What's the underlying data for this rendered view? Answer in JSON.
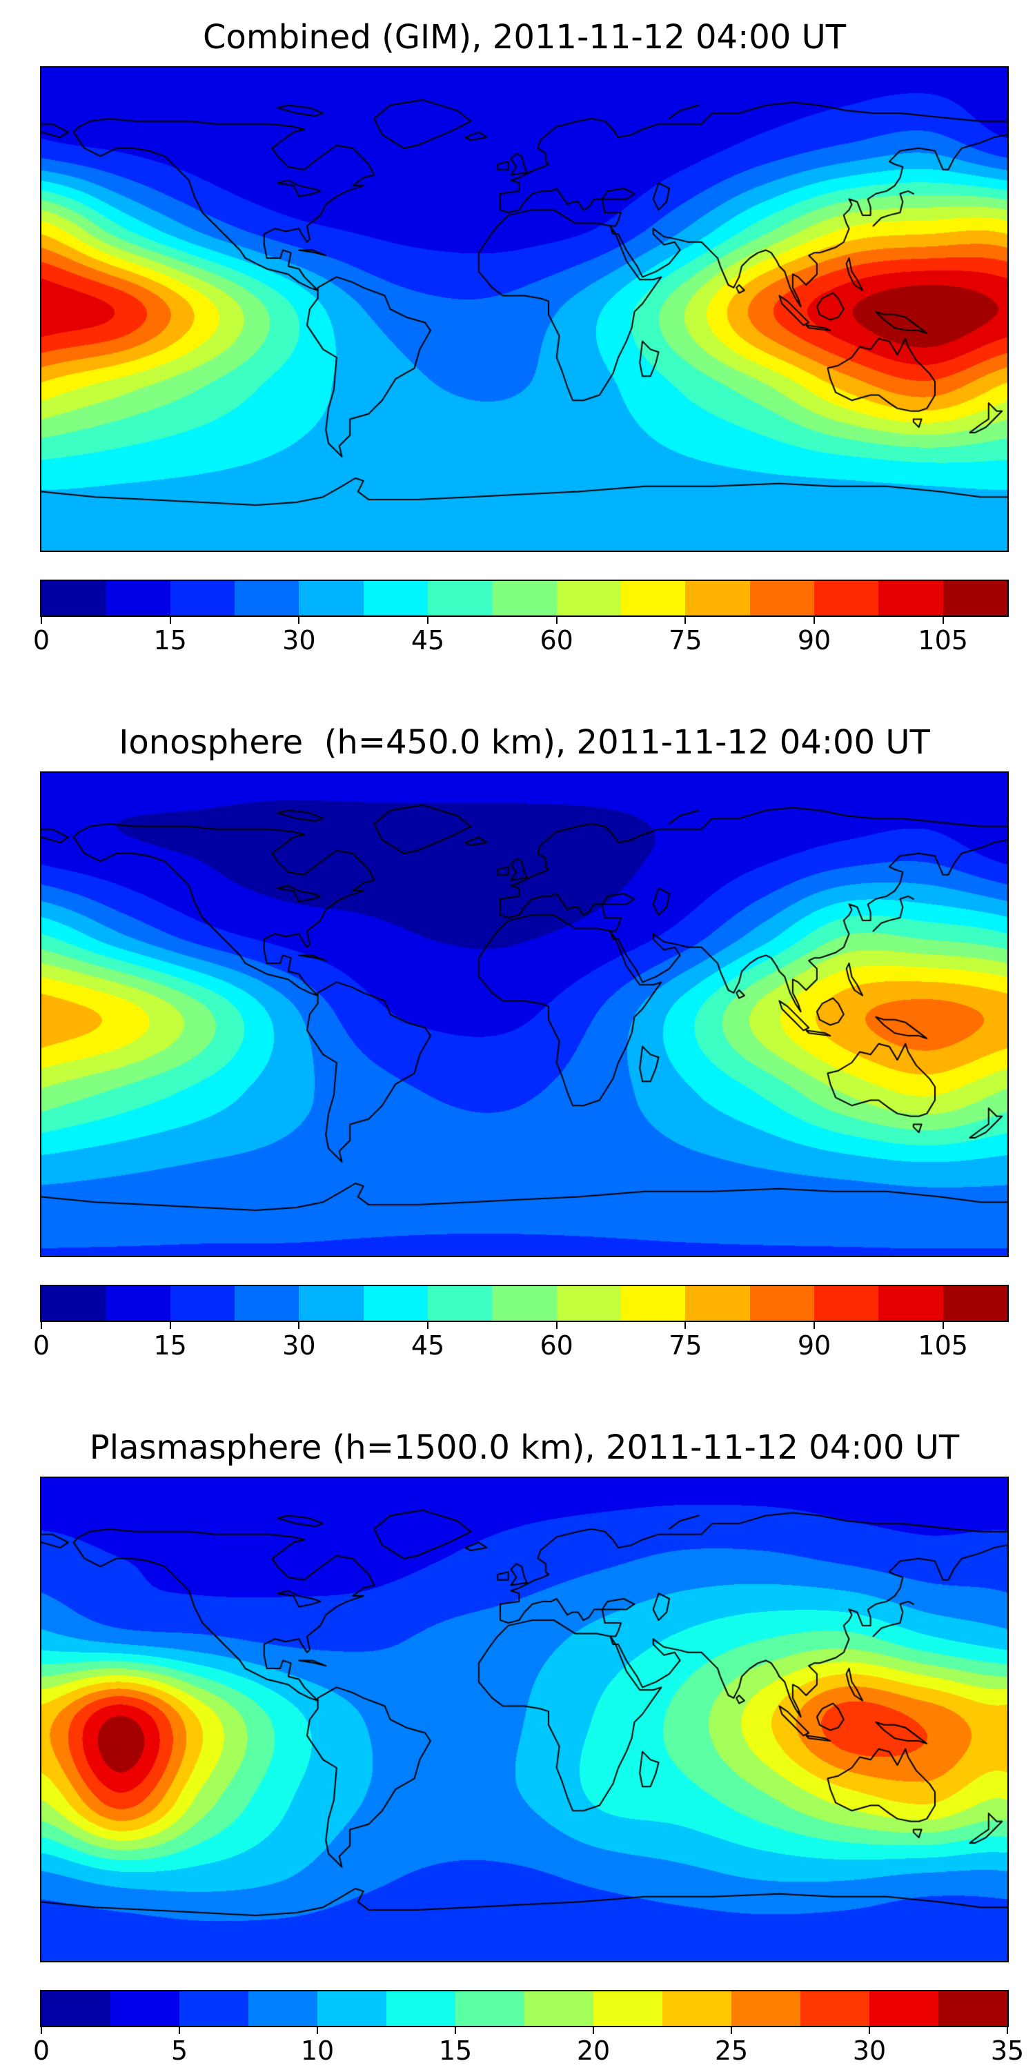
{
  "figure": {
    "background": "#ffffff"
  },
  "chart_data": [
    {
      "type": "heatmap",
      "title": "Combined (GIM), 2011-11-12 04:00 UT",
      "projection": "equirectangular",
      "lon_range": [
        -180,
        180
      ],
      "lat_range": [
        -90,
        90
      ],
      "colormap": "jet",
      "vmin": 0,
      "vmax": 112.5,
      "n_levels": 15,
      "colorbar_ticks": [
        0,
        15,
        30,
        45,
        60,
        75,
        90,
        105
      ],
      "grid_lon": [
        -180,
        -150,
        -120,
        -90,
        -60,
        -30,
        0,
        30,
        60,
        90,
        120,
        150,
        180
      ],
      "grid_lat": [
        90,
        60,
        30,
        0,
        -30,
        -60,
        -90
      ],
      "values": [
        [
          12,
          12,
          12,
          12,
          12,
          12,
          12,
          12,
          12,
          12,
          12,
          12,
          12
        ],
        [
          18,
          14,
          11,
          9,
          8,
          8,
          8,
          9,
          12,
          18,
          24,
          28,
          18
        ],
        [
          72,
          46,
          28,
          18,
          14,
          12,
          12,
          16,
          30,
          50,
          68,
          72,
          72
        ],
        [
          104,
          96,
          72,
          48,
          30,
          24,
          26,
          38,
          60,
          88,
          104,
          112,
          104
        ],
        [
          72,
          62,
          52,
          42,
          35,
          30,
          30,
          36,
          46,
          58,
          76,
          86,
          72
        ],
        [
          42,
          40,
          38,
          36,
          34,
          33,
          33,
          34,
          36,
          38,
          40,
          42,
          42
        ],
        [
          30,
          30,
          30,
          30,
          30,
          30,
          30,
          30,
          30,
          30,
          30,
          30,
          30
        ]
      ]
    },
    {
      "type": "heatmap",
      "title": "Ionosphere  (h=450.0 km), 2011-11-12 04:00 UT",
      "projection": "equirectangular",
      "lon_range": [
        -180,
        180
      ],
      "lat_range": [
        -90,
        90
      ],
      "colormap": "jet",
      "vmin": 0,
      "vmax": 112.5,
      "n_levels": 15,
      "colorbar_ticks": [
        0,
        15,
        30,
        45,
        60,
        75,
        90,
        105
      ],
      "grid_lon": [
        -180,
        -150,
        -120,
        -90,
        -60,
        -30,
        0,
        30,
        60,
        90,
        120,
        150,
        180
      ],
      "grid_lat": [
        90,
        60,
        30,
        0,
        -30,
        -60,
        -90
      ],
      "values": [
        [
          9,
          9,
          9,
          9,
          9,
          9,
          9,
          9,
          9,
          9,
          9,
          9,
          9
        ],
        [
          12,
          9,
          7,
          5,
          5,
          5,
          5,
          6,
          9,
          13,
          18,
          20,
          12
        ],
        [
          45,
          30,
          18,
          12,
          9,
          7,
          7,
          10,
          18,
          34,
          52,
          50,
          45
        ],
        [
          80,
          72,
          55,
          34,
          18,
          13,
          14,
          24,
          42,
          64,
          80,
          86,
          80
        ],
        [
          58,
          50,
          42,
          33,
          26,
          22,
          22,
          27,
          36,
          46,
          60,
          68,
          58
        ],
        [
          32,
          30,
          28,
          27,
          25,
          24,
          24,
          25,
          27,
          29,
          31,
          33,
          32
        ],
        [
          22,
          22,
          22,
          22,
          22,
          22,
          22,
          22,
          22,
          22,
          22,
          22,
          22
        ]
      ]
    },
    {
      "type": "heatmap",
      "title": "Plasmasphere (h=1500.0 km), 2011-11-12 04:00 UT",
      "projection": "equirectangular",
      "lon_range": [
        -180,
        180
      ],
      "lat_range": [
        -90,
        90
      ],
      "colormap": "jet",
      "vmin": 0,
      "vmax": 35,
      "n_levels": 14,
      "colorbar_ticks": [
        0,
        5,
        10,
        15,
        20,
        25,
        30,
        35
      ],
      "grid_lon": [
        -180,
        -150,
        -120,
        -90,
        -60,
        -30,
        0,
        30,
        60,
        90,
        120,
        150,
        180
      ],
      "grid_lat": [
        90,
        60,
        30,
        0,
        -30,
        -60,
        -90
      ],
      "values": [
        [
          4,
          4,
          4,
          4,
          4,
          4,
          4,
          4,
          4,
          4,
          4,
          4,
          4
        ],
        [
          6,
          5,
          4,
          4,
          4,
          5,
          6,
          7,
          8,
          8,
          7,
          6,
          6
        ],
        [
          11,
          9,
          8,
          7,
          7,
          8,
          9,
          11,
          13,
          15,
          16,
          13,
          11
        ],
        [
          24,
          33,
          22,
          14,
          10,
          8,
          10,
          13,
          16,
          22,
          29,
          27,
          24
        ],
        [
          20,
          29,
          19,
          13,
          10,
          9,
          10,
          13,
          14,
          17,
          21,
          23,
          20
        ],
        [
          9,
          11,
          11,
          10,
          8,
          7,
          7,
          8,
          9,
          10,
          10,
          9,
          9
        ],
        [
          5,
          5,
          5,
          5,
          5,
          5,
          5,
          5,
          5,
          5,
          5,
          5,
          5
        ]
      ]
    }
  ]
}
